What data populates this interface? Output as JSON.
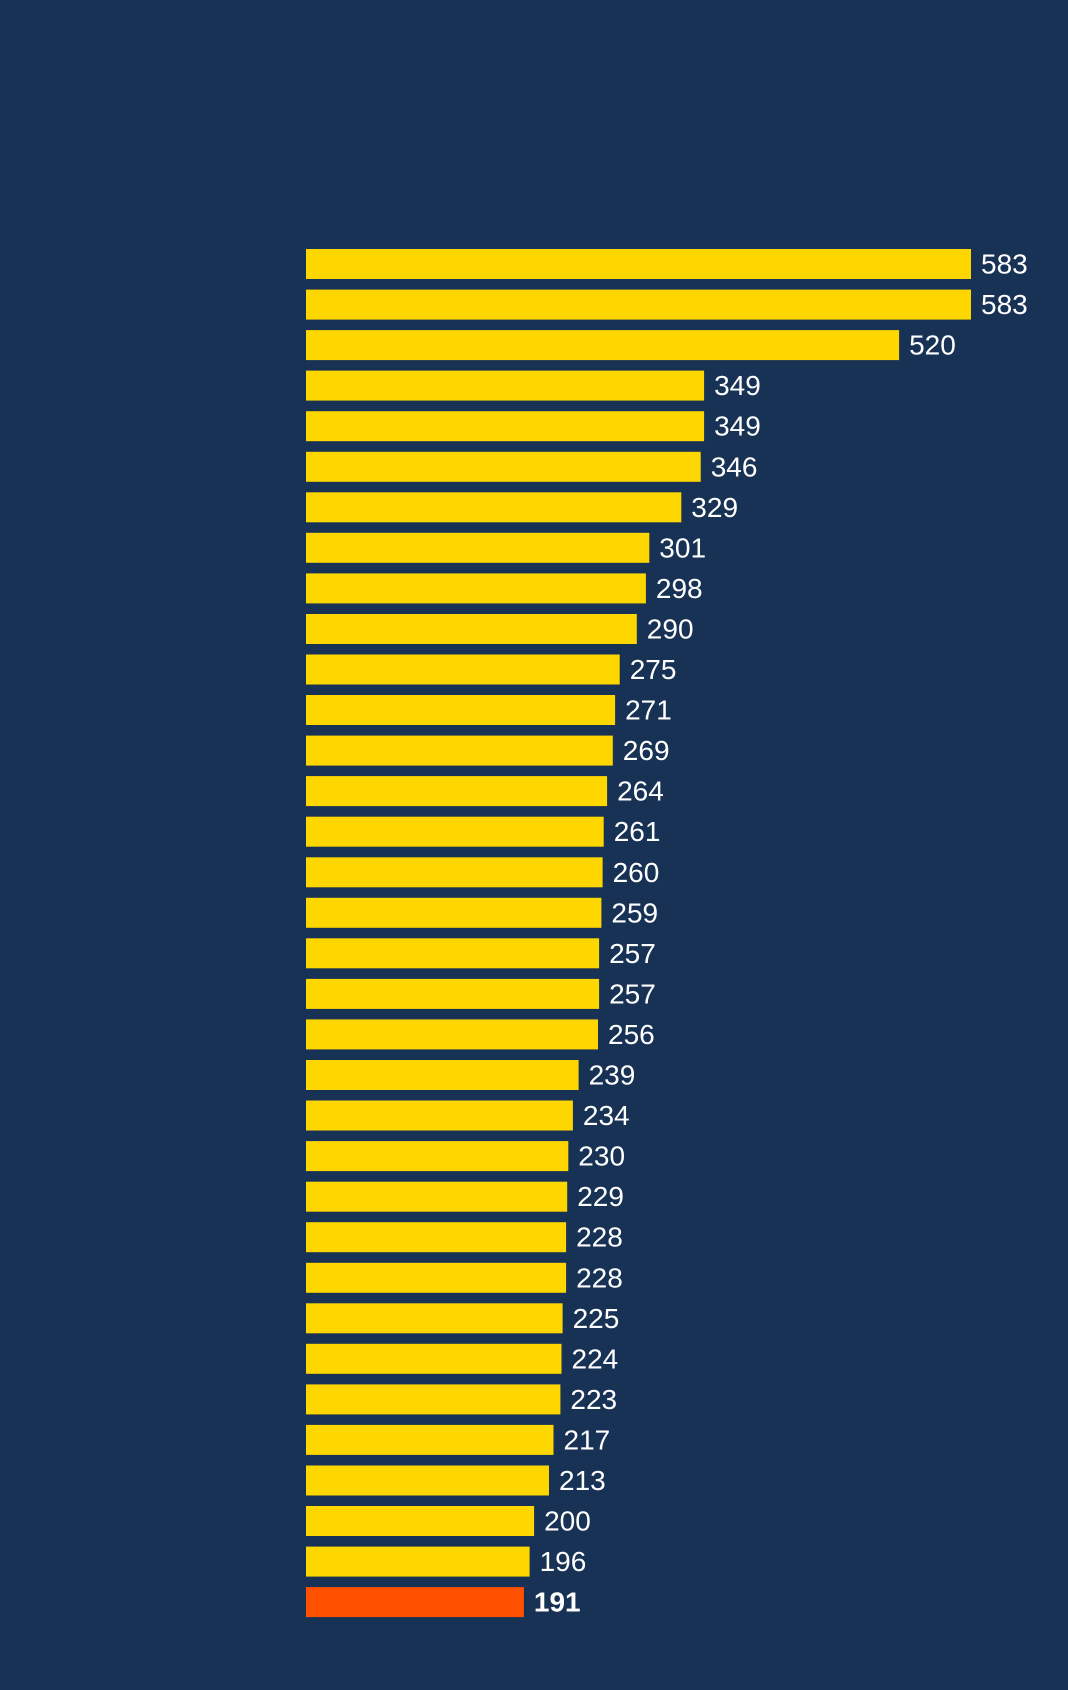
{
  "chart_data": {
    "type": "bar",
    "orientation": "horizontal",
    "title": "",
    "xlabel": "",
    "ylabel": "",
    "categories": [],
    "values": [
      583,
      583,
      520,
      349,
      349,
      346,
      329,
      301,
      298,
      290,
      275,
      271,
      269,
      264,
      261,
      260,
      259,
      257,
      257,
      256,
      239,
      234,
      230,
      229,
      228,
      228,
      225,
      224,
      223,
      217,
      213,
      200,
      196,
      191
    ],
    "labels": [
      "583",
      "583",
      "520",
      "349",
      "349",
      "346",
      "329",
      "301",
      "298",
      "290",
      "275",
      "271",
      "269",
      "264",
      "261",
      "260",
      "259",
      "257",
      "257",
      "256",
      "239",
      "234",
      "230",
      "229",
      "228",
      "228",
      "225",
      "224",
      "223",
      "217",
      "213",
      "200",
      "196",
      "191"
    ],
    "highlight_index": 33,
    "xlim": [
      0,
      583
    ],
    "grid": false,
    "legend": "none",
    "colors": {
      "background": "#173255",
      "bar": "#FFD700",
      "highlight_bar": "#FF5000",
      "label": "#FFFFFF"
    }
  }
}
